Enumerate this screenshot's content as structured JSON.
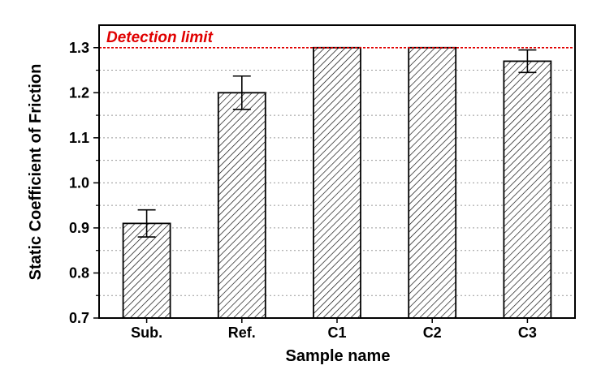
{
  "chart_data": {
    "type": "bar",
    "title": "",
    "xlabel": "Sample name",
    "ylabel": "Static Coefficient of Friction",
    "categories": [
      "Sub.",
      "Ref.",
      "C1",
      "C2",
      "C3"
    ],
    "values": [
      0.91,
      1.2,
      1.3,
      1.3,
      1.27
    ],
    "error": [
      0.03,
      0.037,
      0,
      0,
      0.025
    ],
    "ylim": [
      0.7,
      1.35
    ],
    "yticks": [
      "0.7",
      "0.8",
      "0.9",
      "1.0",
      "1.1",
      "1.2",
      "1.3"
    ],
    "grid": "horizontal dotted",
    "bar_fill": "hatched",
    "annotation": {
      "text": "Detection limit",
      "y": 1.3,
      "color": "#e00000"
    }
  }
}
